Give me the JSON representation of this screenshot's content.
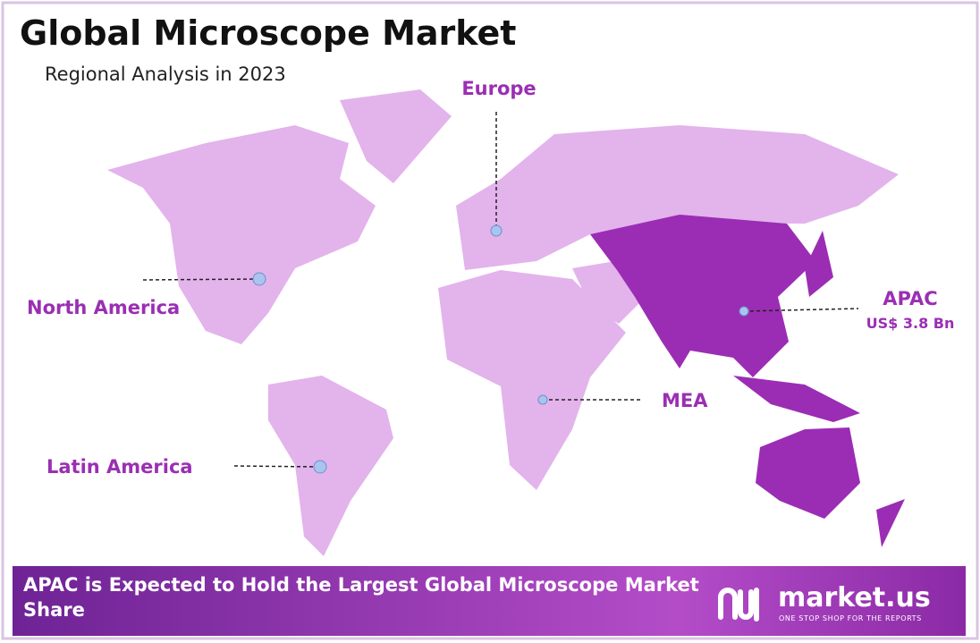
{
  "header": {
    "title": "Global Microscope Market",
    "subtitle": "Regional Analysis in 2023"
  },
  "regions": [
    {
      "label": "Europe"
    },
    {
      "label": "North America"
    },
    {
      "label": "APAC",
      "value": "US$ 3.8 Bn"
    },
    {
      "label": "MEA"
    },
    {
      "label": "Latin America"
    }
  ],
  "footer": {
    "text": "APAC is Expected to Hold the Largest Global Microscope Market Share",
    "brand": "market.us",
    "tagline": "ONE STOP SHOP FOR THE REPORTS"
  }
}
